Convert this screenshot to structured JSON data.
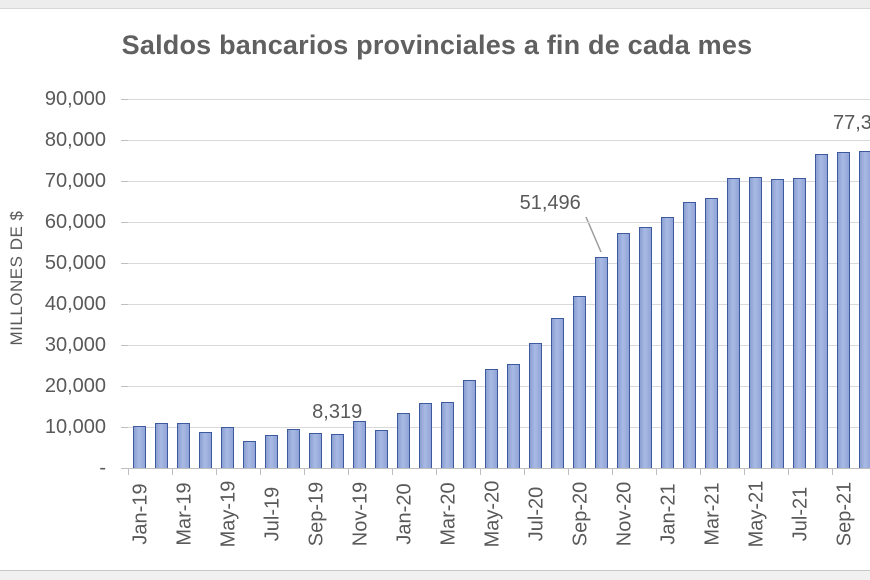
{
  "chart_data": {
    "type": "bar",
    "title": "Saldos bancarios provinciales a fin de cada mes",
    "ylabel": "MILLONES DE $",
    "xlabel": "",
    "ylim": [
      0,
      90000
    ],
    "grid": true,
    "legend": false,
    "categories": [
      "Jan-19",
      "Feb-19",
      "Mar-19",
      "Apr-19",
      "May-19",
      "Jun-19",
      "Jul-19",
      "Aug-19",
      "Sep-19",
      "Oct-19",
      "Nov-19",
      "Dec-19",
      "Jan-20",
      "Feb-20",
      "Mar-20",
      "Apr-20",
      "May-20",
      "Jun-20",
      "Jul-20",
      "Aug-20",
      "Sep-20",
      "Oct-20",
      "Nov-20",
      "Dec-20",
      "Jan-21",
      "Feb-21",
      "Mar-21",
      "Apr-21",
      "May-21",
      "Jun-21",
      "Jul-21",
      "Aug-21",
      "Sep-21",
      "Oct-21"
    ],
    "values": [
      10300,
      11000,
      10900,
      8900,
      10000,
      6700,
      8000,
      9400,
      8600,
      8319,
      11500,
      9300,
      13300,
      15800,
      16200,
      21500,
      24100,
      25400,
      30400,
      36700,
      42000,
      51496,
      57400,
      58700,
      61200,
      65000,
      65800,
      70700,
      71000,
      70600,
      70800,
      76700,
      77100,
      77300
    ],
    "x_tick_labels_shown": [
      "Jan-19",
      "Mar-19",
      "May-19",
      "Jul-19",
      "Sep-19",
      "Nov-19",
      "Jan-20",
      "Mar-20",
      "May-20",
      "Jul-20",
      "Sep-20",
      "Nov-20",
      "Jan-21",
      "Mar-21",
      "May-21",
      "Jul-21",
      "Sep-21"
    ],
    "y_tick_labels": [
      "90,000",
      "80,000",
      "70,000",
      "60,000",
      "50,000",
      "40,000",
      "30,000",
      "20,000",
      "10,000",
      "-"
    ],
    "y_tick_values": [
      90000,
      80000,
      70000,
      60000,
      50000,
      40000,
      30000,
      20000,
      10000,
      0
    ],
    "data_labels": [
      {
        "category": "Oct-19",
        "text": "8,319",
        "placement": "above-bar"
      },
      {
        "category": "Oct-20",
        "text": "51,496",
        "placement": "offset-left-with-leader",
        "leader_line": true
      },
      {
        "category": "Oct-21",
        "text": "77,3",
        "placement": "clipped-right",
        "truncated": true
      }
    ],
    "last_bar_clipped": true,
    "colors": {
      "bar_fill": "#95a9da",
      "bar_border": "#3d5a9e",
      "gridline": "#d9d9d9",
      "axis": "#bfbfbf",
      "text": "#595959"
    }
  }
}
